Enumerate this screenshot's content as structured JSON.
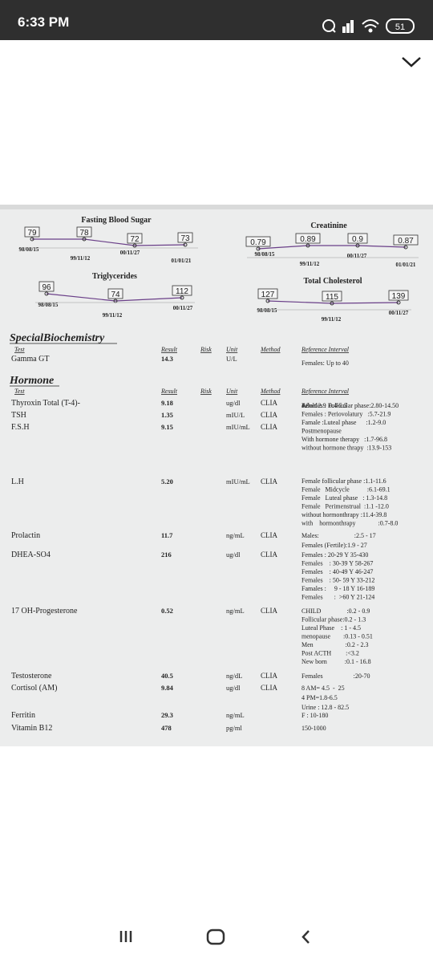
{
  "status_bar": {
    "time": "6:33 PM",
    "battery": "51"
  },
  "trend_charts": [
    {
      "title": "Fasting Blood Sugar",
      "points": [
        {
          "value": 79,
          "date": "98/08/15"
        },
        {
          "value": 78,
          "date": "99/11/12"
        },
        {
          "value": 72,
          "date": "00/11/27"
        },
        {
          "value": 73,
          "date": "01/01/21"
        }
      ]
    },
    {
      "title": "Creatinine",
      "points": [
        {
          "value": 0.79,
          "date": "98/08/15"
        },
        {
          "value": 0.89,
          "date": "99/11/12"
        },
        {
          "value": 0.9,
          "date": "00/11/27"
        },
        {
          "value": 0.87,
          "date": "01/01/21"
        }
      ]
    },
    {
      "title": "Triglycerides",
      "points": [
        {
          "value": 96,
          "date": "98/08/15"
        },
        {
          "value": 74,
          "date": "99/11/12"
        },
        {
          "value": 112,
          "date": "00/11/27"
        }
      ]
    },
    {
      "title": "Total Cholesterol",
      "points": [
        {
          "value": 127,
          "date": "98/08/15"
        },
        {
          "value": 115,
          "date": "99/11/12"
        },
        {
          "value": 139,
          "date": "00/11/27"
        }
      ]
    }
  ],
  "sections": [
    {
      "title": "SpecialBiochemistry",
      "columns": [
        "Test",
        "Result",
        "Risk",
        "Unit",
        "Method",
        "Reference Interval"
      ],
      "rows": [
        {
          "test": "Gamma GT",
          "result": "14.3",
          "unit": "U/L",
          "reference": [
            "Females: Up to 40"
          ]
        }
      ]
    },
    {
      "title": "Hormone",
      "columns": [
        "Test",
        "Result",
        "Risk",
        "Unit",
        "Method",
        "Reference Interval"
      ],
      "rows": [
        {
          "test": "Thyroxin Total (T-4)-",
          "result": "9.18",
          "unit": "ug/dl",
          "method": "CLIA",
          "reference": [
            "4.5 - 12.9"
          ]
        },
        {
          "test": "TSH",
          "result": "1.35",
          "unit": "mIU/L",
          "method": "CLIA",
          "reference": [
            "Adult        0.4-5.5"
          ]
        },
        {
          "test": "F.S.H",
          "result": "9.15",
          "unit": "mIU/mL",
          "method": "CLIA",
          "reference": [
            "Females : Follicular phase:2.80-14.50",
            "Females : Periovolatury   :5.7-21.9",
            "Famale :Luteal phase      :1.2-9.0",
            "Postmenopause",
            "With hormone therapy   :1.7-96.8",
            "without hormone thrapy  :13.9-153"
          ]
        },
        {
          "test": "L.H",
          "result": "5.20",
          "unit": "mIU/mL",
          "method": "CLIA",
          "reference": [
            "Female follicular phase :1.1-11.6",
            "Female   Midcycle           :6.1-69.1",
            "Female   Luteal phase   : 1.3-14.8",
            "Female   Perimenstrual  :1.1 -12.0",
            "without hormonthrapy :11.4-39.8",
            "with    hormonthrapy              :0.7-8.0"
          ]
        },
        {
          "test": "Prolactin",
          "result": "11.7",
          "unit": "ng/mL",
          "method": "CLIA",
          "reference": [
            "Males:                      :2.5 - 17",
            "Females (Fertile):1.9 - 27"
          ]
        },
        {
          "test": "DHEA-SO4",
          "result": "216",
          "unit": "ug/dl",
          "method": "CLIA",
          "reference": [
            "Females : 20-29 Y 35-430",
            "Females    : 30-39 Y 58-267",
            "Females    : 40-49 Y 46-247",
            "Females    : 50- 59 Y 33-212",
            "Famales :     9 - 18 Y 16-189",
            "Females       :  >60 Y 21-124"
          ]
        },
        {
          "test": "17 OH-Progesterone",
          "result": "0.52",
          "unit": "ng/mL",
          "method": "CLIA",
          "reference": [
            "CHILD                :0.2 - 0.9",
            "Follicular phase:0.2 - 1.3",
            "Luteal Phase    : 1 - 4.5",
            "menopause        :0.13 - 0.51",
            "Men                    :0.2 - 2.3",
            "Post ACTH         :<3.2",
            "New born           :0.1 - 16.8"
          ]
        },
        {
          "test": "Testosterone",
          "result": "40.5",
          "unit": "ng/dL",
          "method": "CLIA",
          "reference": [
            "Females                   :20-70"
          ]
        },
        {
          "test": "Cortisol (AM)",
          "result": "9.84",
          "unit": "ug/dl",
          "method": "CLIA",
          "reference": [
            "8 AM= 4.5  -  25",
            "4 PM=1.8-6.5",
            "Urine : 12.8 - 82.5"
          ]
        },
        {
          "test": "Ferritin",
          "result": "29.3",
          "unit": "ng/mL",
          "reference": [
            "F : 10-180"
          ]
        },
        {
          "test": "Vitamin B12",
          "result": "478",
          "unit": "pg/ml",
          "reference": [
            "150-1000"
          ]
        }
      ]
    }
  ]
}
